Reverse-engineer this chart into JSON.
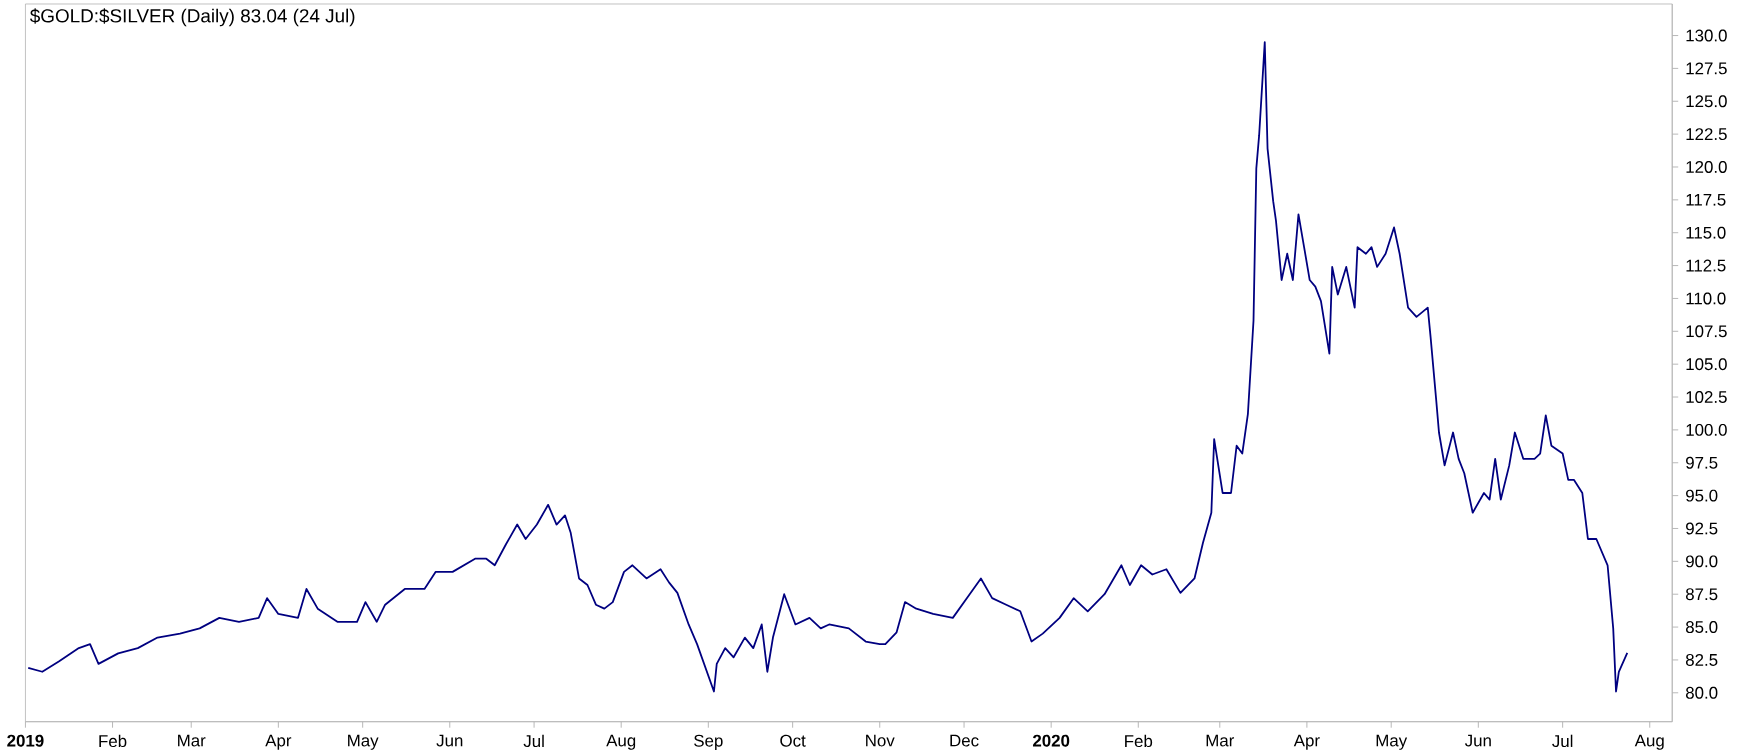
{
  "chart_data": {
    "type": "line",
    "title": "$GOLD:$SILVER (Daily) 83.04 (24 Jul)",
    "x": [
      "2019-01-02",
      "2019-01-07",
      "2019-01-13",
      "2019-01-20",
      "2019-01-24",
      "2019-01-27",
      "2019-02-03",
      "2019-02-10",
      "2019-02-17",
      "2019-02-25",
      "2019-03-04",
      "2019-03-11",
      "2019-03-18",
      "2019-03-25",
      "2019-03-28",
      "2019-04-01",
      "2019-04-08",
      "2019-04-11",
      "2019-04-15",
      "2019-04-22",
      "2019-04-29",
      "2019-05-02",
      "2019-05-06",
      "2019-05-09",
      "2019-05-16",
      "2019-05-23",
      "2019-05-27",
      "2019-06-02",
      "2019-06-10",
      "2019-06-14",
      "2019-06-17",
      "2019-06-21",
      "2019-06-25",
      "2019-06-28",
      "2019-07-02",
      "2019-07-06",
      "2019-07-09",
      "2019-07-12",
      "2019-07-14",
      "2019-07-17",
      "2019-07-20",
      "2019-07-23",
      "2019-07-26",
      "2019-07-29",
      "2019-08-02",
      "2019-08-05",
      "2019-08-10",
      "2019-08-15",
      "2019-08-18",
      "2019-08-21",
      "2019-08-25",
      "2019-08-28",
      "2019-09-03",
      "2019-09-04",
      "2019-09-07",
      "2019-09-10",
      "2019-09-14",
      "2019-09-17",
      "2019-09-20",
      "2019-09-22",
      "2019-09-24",
      "2019-09-28",
      "2019-10-02",
      "2019-10-07",
      "2019-10-11",
      "2019-10-14",
      "2019-10-21",
      "2019-10-27",
      "2019-11-01",
      "2019-11-03",
      "2019-11-07",
      "2019-11-10",
      "2019-11-14",
      "2019-11-20",
      "2019-11-27",
      "2019-12-03",
      "2019-12-07",
      "2019-12-11",
      "2019-12-16",
      "2019-12-21",
      "2019-12-25",
      "2019-12-29",
      "2020-01-04",
      "2020-01-09",
      "2020-01-14",
      "2020-01-20",
      "2020-01-26",
      "2020-01-29",
      "2020-02-02",
      "2020-02-06",
      "2020-02-11",
      "2020-02-16",
      "2020-02-21",
      "2020-02-24",
      "2020-02-27",
      "2020-02-28",
      "2020-03-02",
      "2020-03-05",
      "2020-03-07",
      "2020-03-09",
      "2020-03-11",
      "2020-03-13",
      "2020-03-14",
      "2020-03-15",
      "2020-03-17",
      "2020-03-18",
      "2020-03-20",
      "2020-03-21",
      "2020-03-23",
      "2020-03-25",
      "2020-03-27",
      "2020-03-29",
      "2020-03-31",
      "2020-04-02",
      "2020-04-04",
      "2020-04-06",
      "2020-04-09",
      "2020-04-10",
      "2020-04-12",
      "2020-04-15",
      "2020-04-18",
      "2020-04-19",
      "2020-04-22",
      "2020-04-24",
      "2020-04-26",
      "2020-04-29",
      "2020-05-02",
      "2020-05-04",
      "2020-05-07",
      "2020-05-10",
      "2020-05-14",
      "2020-05-15",
      "2020-05-17",
      "2020-05-18",
      "2020-05-20",
      "2020-05-23",
      "2020-05-25",
      "2020-05-27",
      "2020-05-30",
      "2020-06-03",
      "2020-06-05",
      "2020-06-07",
      "2020-06-09",
      "2020-06-12",
      "2020-06-14",
      "2020-06-17",
      "2020-06-21",
      "2020-06-23",
      "2020-06-25",
      "2020-06-27",
      "2020-07-01",
      "2020-07-03",
      "2020-07-05",
      "2020-07-08",
      "2020-07-10",
      "2020-07-13",
      "2020-07-17",
      "2020-07-19",
      "2020-07-20",
      "2020-07-21",
      "2020-07-24"
    ],
    "series": [
      {
        "color": "#000080",
        "values": [
          81.9,
          81.6,
          82.4,
          83.4,
          83.7,
          82.2,
          83.0,
          83.4,
          84.2,
          84.5,
          84.9,
          85.7,
          85.4,
          85.7,
          87.2,
          86.0,
          85.7,
          87.9,
          86.4,
          85.4,
          85.4,
          86.9,
          85.4,
          86.7,
          87.9,
          87.9,
          89.2,
          89.2,
          90.2,
          90.2,
          89.7,
          91.3,
          92.8,
          91.7,
          92.8,
          94.3,
          92.8,
          93.5,
          92.2,
          88.7,
          88.2,
          86.7,
          86.4,
          86.9,
          89.2,
          89.7,
          88.7,
          89.4,
          88.4,
          87.6,
          85.2,
          83.7,
          80.1,
          82.2,
          83.4,
          82.7,
          84.2,
          83.4,
          85.2,
          81.6,
          84.2,
          87.5,
          85.2,
          85.7,
          84.9,
          85.2,
          84.9,
          83.9,
          83.7,
          83.7,
          84.6,
          86.9,
          86.4,
          86.0,
          85.7,
          87.5,
          88.7,
          87.2,
          86.7,
          86.2,
          83.9,
          84.5,
          85.7,
          87.2,
          86.2,
          87.5,
          89.7,
          88.2,
          89.7,
          89.0,
          89.4,
          87.6,
          88.7,
          91.4,
          93.7,
          99.3,
          95.2,
          95.2,
          98.8,
          98.2,
          101.2,
          108.3,
          119.9,
          122.4,
          129.5,
          121.4,
          117.4,
          115.9,
          111.4,
          113.4,
          111.4,
          116.4,
          113.9,
          111.4,
          110.9,
          109.8,
          105.8,
          112.4,
          110.3,
          112.4,
          109.3,
          113.9,
          113.4,
          113.9,
          112.4,
          113.4,
          115.4,
          113.4,
          109.3,
          108.6,
          109.3,
          107.1,
          102.3,
          99.8,
          97.3,
          99.8,
          97.8,
          96.7,
          93.7,
          95.2,
          94.7,
          97.8,
          94.7,
          97.3,
          99.8,
          97.8,
          97.8,
          98.2,
          101.1,
          98.8,
          98.2,
          96.2,
          96.2,
          95.2,
          91.7,
          91.7,
          89.7,
          84.9,
          80.1,
          81.6,
          83.04
        ]
      }
    ],
    "xlim": [
      "2019-01-01",
      "2020-08-09"
    ],
    "xticks": [
      {
        "value": "2019-01-01",
        "label": "**2019**"
      },
      {
        "value": "2019-02-01",
        "label": "Feb"
      },
      {
        "value": "2019-03-01",
        "label": "Mar"
      },
      {
        "value": "2019-04-01",
        "label": "Apr"
      },
      {
        "value": "2019-05-01",
        "label": "May"
      },
      {
        "value": "2019-06-01",
        "label": "Jun"
      },
      {
        "value": "2019-07-01",
        "label": "Jul"
      },
      {
        "value": "2019-08-01",
        "label": "Aug"
      },
      {
        "value": "2019-09-01",
        "label": "Sep"
      },
      {
        "value": "2019-10-01",
        "label": "Oct"
      },
      {
        "value": "2019-11-01",
        "label": "Nov"
      },
      {
        "value": "2019-12-01",
        "label": "Dec"
      },
      {
        "value": "2020-01-01",
        "label": "**2020**"
      },
      {
        "value": "2020-02-01",
        "label": "Feb"
      },
      {
        "value": "2020-03-01",
        "label": "Mar"
      },
      {
        "value": "2020-04-01",
        "label": "Apr"
      },
      {
        "value": "2020-05-01",
        "label": "May"
      },
      {
        "value": "2020-06-01",
        "label": "Jun"
      },
      {
        "value": "2020-07-01",
        "label": "Jul"
      },
      {
        "value": "2020-08-01",
        "label": "Aug"
      }
    ],
    "ylim": [
      77.8,
      132.4
    ],
    "yticks": [
      {
        "value": 80,
        "label": "80.0"
      },
      {
        "value": 82.5,
        "label": "82.5"
      },
      {
        "value": 85,
        "label": "85.0"
      },
      {
        "value": 87.5,
        "label": "87.5"
      },
      {
        "value": 90,
        "label": "90.0"
      },
      {
        "value": 92.5,
        "label": "92.5"
      },
      {
        "value": 95,
        "label": "95.0"
      },
      {
        "value": 97.5,
        "label": "97.5"
      },
      {
        "value": 100,
        "label": "100.0"
      },
      {
        "value": 102.5,
        "label": "102.5"
      },
      {
        "value": 105,
        "label": "105.0"
      },
      {
        "value": 107.5,
        "label": "107.5"
      },
      {
        "value": 110,
        "label": "110.0"
      },
      {
        "value": 112.5,
        "label": "112.5"
      },
      {
        "value": 115,
        "label": "115.0"
      },
      {
        "value": 117.5,
        "label": "117.5"
      },
      {
        "value": 120,
        "label": "120.0"
      },
      {
        "value": 122.5,
        "label": "122.5"
      },
      {
        "value": 125,
        "label": "125.0"
      },
      {
        "value": 127.5,
        "label": "127.5"
      },
      {
        "value": 130,
        "label": "130.0"
      }
    ]
  }
}
